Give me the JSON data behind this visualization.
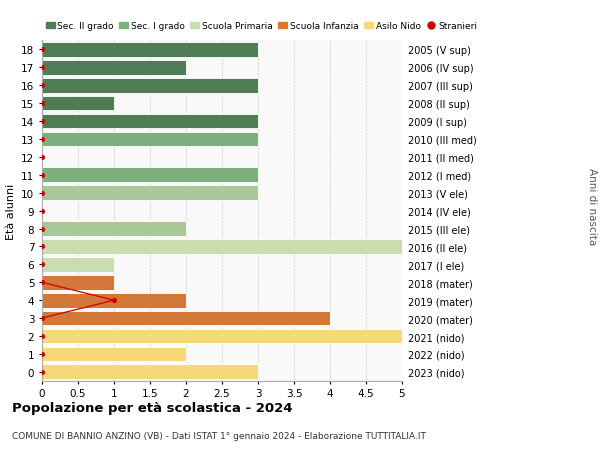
{
  "ages": [
    18,
    17,
    16,
    15,
    14,
    13,
    12,
    11,
    10,
    9,
    8,
    7,
    6,
    5,
    4,
    3,
    2,
    1,
    0
  ],
  "right_labels": [
    "2005 (V sup)",
    "2006 (IV sup)",
    "2007 (III sup)",
    "2008 (II sup)",
    "2009 (I sup)",
    "2010 (III med)",
    "2011 (II med)",
    "2012 (I med)",
    "2013 (V ele)",
    "2014 (IV ele)",
    "2015 (III ele)",
    "2016 (II ele)",
    "2017 (I ele)",
    "2018 (mater)",
    "2019 (mater)",
    "2020 (mater)",
    "2021 (nido)",
    "2022 (nido)",
    "2023 (nido)"
  ],
  "bars": [
    {
      "age": 18,
      "value": 3.0,
      "color": "#4d7c55"
    },
    {
      "age": 17,
      "value": 2.0,
      "color": "#4d7c55"
    },
    {
      "age": 16,
      "value": 3.0,
      "color": "#4d7c55"
    },
    {
      "age": 15,
      "value": 1.0,
      "color": "#4d7c55"
    },
    {
      "age": 14,
      "value": 3.0,
      "color": "#4d7c55"
    },
    {
      "age": 13,
      "value": 3.0,
      "color": "#7db07d"
    },
    {
      "age": 12,
      "value": 0.0,
      "color": "#7db07d"
    },
    {
      "age": 11,
      "value": 3.0,
      "color": "#7db07d"
    },
    {
      "age": 10,
      "value": 3.0,
      "color": "#a8c89a"
    },
    {
      "age": 9,
      "value": 0.0,
      "color": "#a8c89a"
    },
    {
      "age": 8,
      "value": 2.0,
      "color": "#a8c89a"
    },
    {
      "age": 7,
      "value": 5.0,
      "color": "#c8ddb0"
    },
    {
      "age": 6,
      "value": 1.0,
      "color": "#c8ddb0"
    },
    {
      "age": 5,
      "value": 1.0,
      "color": "#d4783a"
    },
    {
      "age": 4,
      "value": 2.0,
      "color": "#d4783a"
    },
    {
      "age": 3,
      "value": 4.0,
      "color": "#d4783a"
    },
    {
      "age": 2,
      "value": 5.0,
      "color": "#f5d878"
    },
    {
      "age": 1,
      "value": 2.0,
      "color": "#f5d878"
    },
    {
      "age": 0,
      "value": 3.0,
      "color": "#f5d878"
    }
  ],
  "stranieri_line_ages": [
    5,
    4,
    3
  ],
  "stranieri_line_vals": [
    0,
    1,
    0
  ],
  "stranieri_dots_ages": [
    18,
    17,
    16,
    15,
    14,
    13,
    12,
    11,
    10,
    9,
    8,
    7,
    6,
    5,
    4,
    3,
    2,
    1,
    0
  ],
  "stranieri_dots_vals": [
    0,
    0,
    0,
    0,
    0,
    0,
    0,
    0,
    0,
    0,
    0,
    0,
    0,
    0,
    1,
    0,
    0,
    0,
    0
  ],
  "legend_items": [
    {
      "label": "Sec. II grado",
      "color": "#4d7c55"
    },
    {
      "label": "Sec. I grado",
      "color": "#7db07d"
    },
    {
      "label": "Scuola Primaria",
      "color": "#c8ddb0"
    },
    {
      "label": "Scuola Infanzia",
      "color": "#d4783a"
    },
    {
      "label": "Asilo Nido",
      "color": "#f5d878"
    },
    {
      "label": "Stranieri",
      "color": "#cc0000"
    }
  ],
  "ylabel_left": "Età alunni",
  "ylabel_right": "Anni di nascita",
  "title": "Popolazione per età scolastica - 2024",
  "subtitle": "COMUNE DI BANNIO ANZINO (VB) - Dati ISTAT 1° gennaio 2024 - Elaborazione TUTTITALIA.IT",
  "xlim": [
    0,
    5.0
  ],
  "xticks": [
    0,
    0.5,
    1.0,
    1.5,
    2.0,
    2.5,
    3.0,
    3.5,
    4.0,
    4.5,
    5.0
  ],
  "bg_color": "#ffffff",
  "plot_bg": "#f9f9f9",
  "grid_color": "#cccccc",
  "bar_height": 0.82
}
